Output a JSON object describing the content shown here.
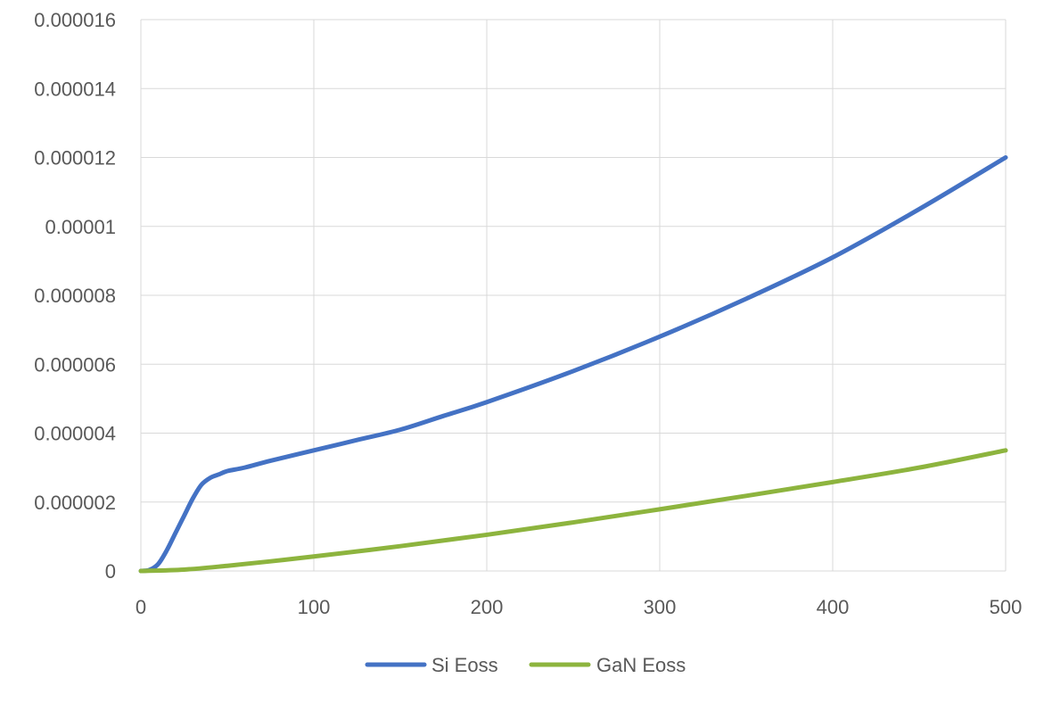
{
  "chart_data": {
    "type": "line",
    "title": "",
    "xlabel": "",
    "ylabel": "",
    "xlim": [
      0,
      500
    ],
    "ylim": [
      0,
      1.6e-05
    ],
    "grid": true,
    "legend_position": "bottom",
    "x_ticks": [
      "0",
      "100",
      "200",
      "300",
      "400",
      "500"
    ],
    "y_ticks": [
      "0",
      "0.000002",
      "0.000004",
      "0.000006",
      "0.000008",
      "0.00001",
      "0.000012",
      "0.000014",
      "0.000016"
    ],
    "x_tick_values": [
      0,
      100,
      200,
      300,
      400,
      500
    ],
    "y_tick_values": [
      0,
      2e-06,
      4e-06,
      6e-06,
      8e-06,
      1e-05,
      1.2e-05,
      1.4e-05,
      1.6e-05
    ],
    "series": [
      {
        "name": "Si Eoss",
        "color": "#4472c4",
        "x": [
          0,
          5,
          10,
          15,
          20,
          25,
          30,
          35,
          40,
          45,
          50,
          60,
          75,
          100,
          125,
          150,
          175,
          200,
          250,
          300,
          350,
          400,
          450,
          500
        ],
        "y": [
          0,
          3e-08,
          2e-07,
          6e-07,
          1.1e-06,
          1.6e-06,
          2.1e-06,
          2.5e-06,
          2.7e-06,
          2.8e-06,
          2.9e-06,
          3e-06,
          3.2e-06,
          3.5e-06,
          3.8e-06,
          4.1e-06,
          4.5e-06,
          4.9e-06,
          5.8e-06,
          6.8e-06,
          7.9e-06,
          9.1e-06,
          1.05e-05,
          1.2e-05
        ]
      },
      {
        "name": "GaN Eoss",
        "color": "#8db43e",
        "x": [
          0,
          25,
          50,
          75,
          100,
          150,
          200,
          250,
          300,
          350,
          400,
          450,
          500
        ],
        "y": [
          0,
          4e-08,
          1.5e-07,
          2.8e-07,
          4.2e-07,
          7.2e-07,
          1.05e-06,
          1.41e-06,
          1.79e-06,
          2.18e-06,
          2.58e-06,
          3e-06,
          3.5e-06
        ]
      }
    ]
  }
}
